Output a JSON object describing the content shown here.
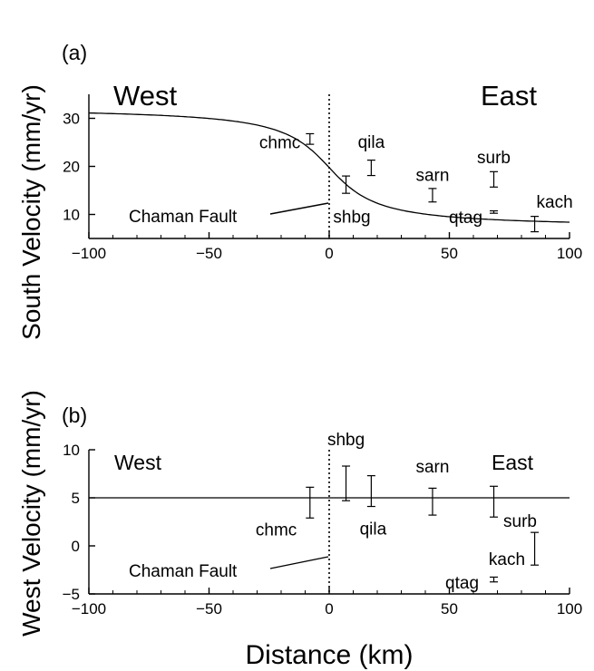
{
  "chart_data": [
    {
      "type": "scatter",
      "panel_label": "(a)",
      "ylabel": "South Velocity (mm/yr)",
      "xlim": [
        -100,
        100
      ],
      "ylim": [
        5,
        35
      ],
      "xticks": [
        -100,
        -50,
        0,
        50,
        100
      ],
      "yticks": [
        10,
        20,
        30
      ],
      "region_labels": {
        "west": "West",
        "east": "East"
      },
      "fault_label": "Chaman Fault",
      "fault_x": 0,
      "model_curve": {
        "far_west": 32.3,
        "far_east": 7.2,
        "locking_depth_km": 15
      },
      "sites": [
        {
          "name": "chmc",
          "x": -8,
          "y": 25.7,
          "err": 1.1
        },
        {
          "name": "shbg",
          "x": 7,
          "y": 16.2,
          "err": 1.8
        },
        {
          "name": "qila",
          "x": 17.5,
          "y": 19.7,
          "err": 1.6
        },
        {
          "name": "sarn",
          "x": 43,
          "y": 14.0,
          "err": 1.4
        },
        {
          "name": "qtag",
          "x": 68.5,
          "y": 10.5,
          "err": 0.25
        },
        {
          "name": "surb",
          "x": 68.5,
          "y": 17.3,
          "err": 1.6
        },
        {
          "name": "kach",
          "x": 85.5,
          "y": 8.0,
          "err": 1.6
        }
      ]
    },
    {
      "type": "scatter",
      "panel_label": "(b)",
      "ylabel": "West Velocity (mm/yr)",
      "xlabel": "Distance (km)",
      "xlim": [
        -100,
        100
      ],
      "ylim": [
        -5,
        10
      ],
      "xticks": [
        -100,
        -50,
        0,
        50,
        100
      ],
      "yticks": [
        -5,
        0,
        5,
        10
      ],
      "region_labels": {
        "west": "West",
        "east": "East"
      },
      "fault_label": "Chaman Fault",
      "fault_x": 0,
      "model_line_y": 5,
      "sites": [
        {
          "name": "chmc",
          "x": -8,
          "y": 4.5,
          "err": 1.6
        },
        {
          "name": "shbg",
          "x": 7,
          "y": 6.5,
          "err": 1.8
        },
        {
          "name": "qila",
          "x": 17.5,
          "y": 5.7,
          "err": 1.6
        },
        {
          "name": "sarn",
          "x": 43,
          "y": 4.6,
          "err": 1.4
        },
        {
          "name": "surb",
          "x": 68.5,
          "y": 4.6,
          "err": 1.6
        },
        {
          "name": "kach",
          "x": 85.5,
          "y": -0.3,
          "err": 1.7
        },
        {
          "name": "qtag",
          "x": 68.5,
          "y": -3.5,
          "err": 0.25
        }
      ]
    }
  ]
}
